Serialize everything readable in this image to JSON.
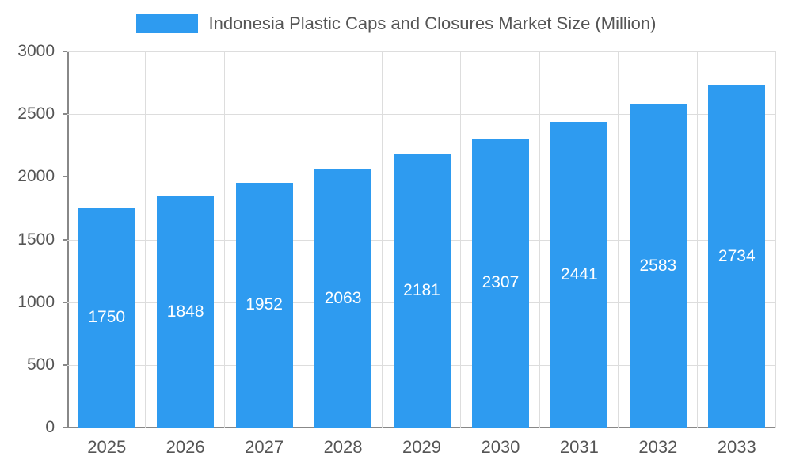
{
  "chart_data": {
    "type": "bar",
    "title": "Indonesia Plastic Caps and Closures Market Size (Million)",
    "categories": [
      "2025",
      "2026",
      "2027",
      "2028",
      "2029",
      "2030",
      "2031",
      "2032",
      "2033"
    ],
    "values": [
      1750,
      1848,
      1952,
      2063,
      2181,
      2307,
      2441,
      2583,
      2734
    ],
    "xlabel": "",
    "ylabel": "",
    "ylim": [
      0,
      3000
    ],
    "yticks": [
      0,
      500,
      1000,
      1500,
      2000,
      2500,
      3000
    ],
    "grid": "on",
    "legend_position": "top-center",
    "bar_color": "#2E9BF0",
    "bar_label_color": "#ffffff",
    "axis_color": "#888888",
    "gridline_color": "#dddddd",
    "text_color": "#555555"
  }
}
